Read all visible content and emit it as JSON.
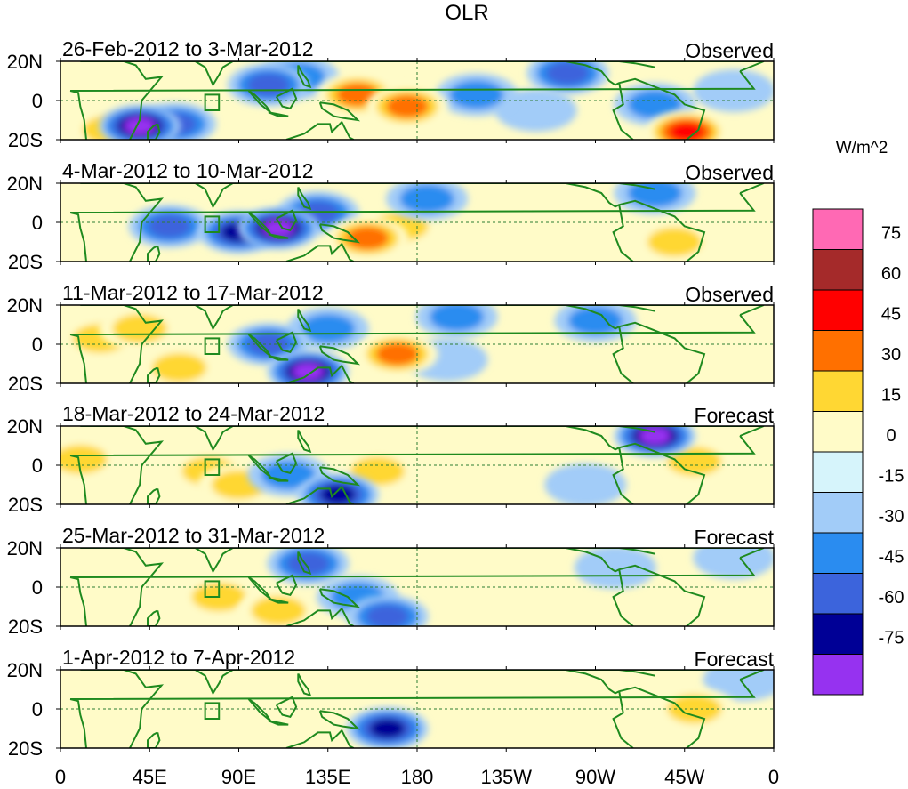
{
  "chart_data": {
    "type": "heatmap",
    "title": "OLR",
    "units": "W/m^2",
    "x_ticks": [
      "0",
      "45E",
      "90E",
      "135E",
      "180",
      "135W",
      "90W",
      "45W",
      "0"
    ],
    "y_ticks": [
      "20N",
      "0",
      "20S"
    ],
    "lon_range": [
      0,
      360
    ],
    "lat_range": [
      -20,
      20
    ],
    "colorbar": {
      "levels": [
        "75",
        "60",
        "45",
        "30",
        "15",
        "0",
        "-15",
        "-30",
        "-45",
        "-60",
        "-75"
      ],
      "colors": [
        "#ff69b4",
        "#a52a2a",
        "#ff0000",
        "#ff7000",
        "#ffd733",
        "#fffbc8",
        "#d6f4fb",
        "#a2ccf8",
        "#2a8cf0",
        "#3c64dc",
        "#000096",
        "#9632f0"
      ]
    },
    "panels": [
      {
        "period": "26-Feb-2012 to 3-Mar-2012",
        "kind": "Observed",
        "anomalies": [
          {
            "lon": 40,
            "lat": -13,
            "value": -75
          },
          {
            "lon": 58,
            "lat": -12,
            "value": -45
          },
          {
            "lon": 25,
            "lat": -15,
            "value": 30
          },
          {
            "lon": 75,
            "lat": -5,
            "value": 15
          },
          {
            "lon": 105,
            "lat": 8,
            "value": -45
          },
          {
            "lon": 120,
            "lat": 12,
            "value": -30
          },
          {
            "lon": 150,
            "lat": 3,
            "value": 45
          },
          {
            "lon": 175,
            "lat": -3,
            "value": 45
          },
          {
            "lon": 160,
            "lat": 15,
            "value": 15
          },
          {
            "lon": 198,
            "lat": 15,
            "value": 15
          },
          {
            "lon": 210,
            "lat": 3,
            "value": -30
          },
          {
            "lon": 240,
            "lat": -5,
            "value": -15
          },
          {
            "lon": 256,
            "lat": 14,
            "value": -45
          },
          {
            "lon": 300,
            "lat": -2,
            "value": -30
          },
          {
            "lon": 316,
            "lat": -16,
            "value": 60
          },
          {
            "lon": 340,
            "lat": 5,
            "value": -15
          }
        ]
      },
      {
        "period": "4-Mar-2012 to 10-Mar-2012",
        "kind": "Observed",
        "anomalies": [
          {
            "lon": 55,
            "lat": -2,
            "value": -45
          },
          {
            "lon": 90,
            "lat": -5,
            "value": -60
          },
          {
            "lon": 110,
            "lat": -3,
            "value": -75
          },
          {
            "lon": 130,
            "lat": 5,
            "value": -45
          },
          {
            "lon": 30,
            "lat": 5,
            "value": 15
          },
          {
            "lon": 155,
            "lat": -8,
            "value": 45
          },
          {
            "lon": 172,
            "lat": -2,
            "value": 30
          },
          {
            "lon": 185,
            "lat": 12,
            "value": -30
          },
          {
            "lon": 230,
            "lat": 15,
            "value": 15
          },
          {
            "lon": 300,
            "lat": 15,
            "value": -30
          },
          {
            "lon": 310,
            "lat": -10,
            "value": 30
          },
          {
            "lon": 345,
            "lat": 5,
            "value": 15
          }
        ]
      },
      {
        "period": "11-Mar-2012 to 17-Mar-2012",
        "kind": "Observed",
        "anomalies": [
          {
            "lon": 20,
            "lat": 3,
            "value": 30
          },
          {
            "lon": 40,
            "lat": 8,
            "value": 30
          },
          {
            "lon": 60,
            "lat": -12,
            "value": 30
          },
          {
            "lon": 105,
            "lat": 0,
            "value": -45
          },
          {
            "lon": 125,
            "lat": -14,
            "value": -75
          },
          {
            "lon": 135,
            "lat": 8,
            "value": -30
          },
          {
            "lon": 170,
            "lat": -5,
            "value": 45
          },
          {
            "lon": 195,
            "lat": -8,
            "value": -15
          },
          {
            "lon": 200,
            "lat": 14,
            "value": -30
          },
          {
            "lon": 270,
            "lat": 12,
            "value": -30
          },
          {
            "lon": 300,
            "lat": -8,
            "value": 15
          },
          {
            "lon": 345,
            "lat": 0,
            "value": 15
          }
        ]
      },
      {
        "period": "18-Mar-2012 to 24-Mar-2012",
        "kind": "Forecast",
        "anomalies": [
          {
            "lon": 10,
            "lat": 3,
            "value": 30
          },
          {
            "lon": 75,
            "lat": -3,
            "value": 30
          },
          {
            "lon": 90,
            "lat": -10,
            "value": 30
          },
          {
            "lon": 115,
            "lat": -5,
            "value": -30
          },
          {
            "lon": 140,
            "lat": -15,
            "value": -60
          },
          {
            "lon": 160,
            "lat": -3,
            "value": 30
          },
          {
            "lon": 200,
            "lat": 5,
            "value": 15
          },
          {
            "lon": 230,
            "lat": 10,
            "value": 15
          },
          {
            "lon": 300,
            "lat": 15,
            "value": -75
          },
          {
            "lon": 320,
            "lat": 2,
            "value": 30
          },
          {
            "lon": 265,
            "lat": -10,
            "value": -15
          }
        ]
      },
      {
        "period": "25-Mar-2012 to 31-Mar-2012",
        "kind": "Forecast",
        "anomalies": [
          {
            "lon": 80,
            "lat": -5,
            "value": 30
          },
          {
            "lon": 110,
            "lat": -12,
            "value": 30
          },
          {
            "lon": 125,
            "lat": 12,
            "value": -45
          },
          {
            "lon": 150,
            "lat": -5,
            "value": -30
          },
          {
            "lon": 165,
            "lat": -15,
            "value": -45
          },
          {
            "lon": 200,
            "lat": 5,
            "value": 15
          },
          {
            "lon": 230,
            "lat": 15,
            "value": 15
          },
          {
            "lon": 280,
            "lat": 10,
            "value": -15
          },
          {
            "lon": 340,
            "lat": 15,
            "value": -15
          }
        ]
      },
      {
        "period": "1-Apr-2012 to 7-Apr-2012",
        "kind": "Forecast",
        "anomalies": [
          {
            "lon": 50,
            "lat": 0,
            "value": 15
          },
          {
            "lon": 105,
            "lat": -8,
            "value": 15
          },
          {
            "lon": 165,
            "lat": -10,
            "value": -60
          },
          {
            "lon": 200,
            "lat": 3,
            "value": 15
          },
          {
            "lon": 230,
            "lat": -8,
            "value": 15
          },
          {
            "lon": 320,
            "lat": 0,
            "value": 30
          },
          {
            "lon": 345,
            "lat": 15,
            "value": -15
          }
        ]
      }
    ]
  }
}
